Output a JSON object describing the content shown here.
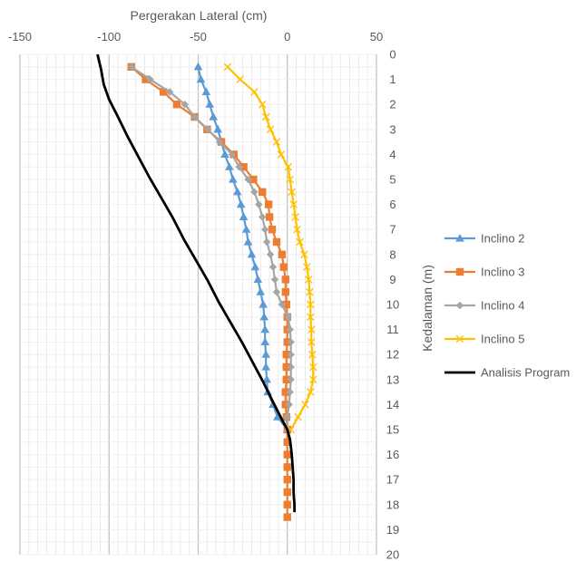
{
  "chart_data": {
    "type": "line",
    "title": "",
    "xlabel": "Pergerakan Lateral (cm)",
    "ylabel": "Kedalaman (m)",
    "xlim": [
      -150,
      50
    ],
    "ylim": [
      0,
      20
    ],
    "y_axis_reversed": true,
    "x_axis_position": "top",
    "y_axis_position": "right",
    "x_ticks": [
      -150,
      -100,
      -50,
      0,
      50
    ],
    "y_ticks": [
      0,
      1,
      2,
      3,
      4,
      5,
      6,
      7,
      8,
      9,
      10,
      11,
      12,
      13,
      14,
      15,
      16,
      17,
      18,
      19,
      20
    ],
    "grid": "vertical and horizontal",
    "legend_position": "right",
    "series": [
      {
        "name": "Inclino 2",
        "color": "#5B9BD5",
        "marker": "triangle",
        "points": [
          [
            -50,
            0.5
          ],
          [
            -48.5,
            1.0
          ],
          [
            -45.5,
            1.5
          ],
          [
            -43.5,
            2.0
          ],
          [
            -41.5,
            2.5
          ],
          [
            -39,
            3.0
          ],
          [
            -37,
            3.5
          ],
          [
            -35,
            4.0
          ],
          [
            -32.5,
            4.5
          ],
          [
            -30.5,
            5.0
          ],
          [
            -28,
            5.5
          ],
          [
            -26,
            6.0
          ],
          [
            -24.5,
            6.5
          ],
          [
            -23,
            7.0
          ],
          [
            -22,
            7.5
          ],
          [
            -20,
            8.0
          ],
          [
            -18,
            8.5
          ],
          [
            -16.5,
            9.0
          ],
          [
            -15,
            9.5
          ],
          [
            -13.5,
            10.0
          ],
          [
            -13,
            10.5
          ],
          [
            -12.5,
            11.0
          ],
          [
            -12.5,
            11.5
          ],
          [
            -12,
            12.0
          ],
          [
            -12,
            12.5
          ],
          [
            -11.5,
            13.0
          ],
          [
            -11,
            13.5
          ],
          [
            -8,
            14.0
          ],
          [
            -5.5,
            14.5
          ],
          [
            0,
            15.0
          ]
        ]
      },
      {
        "name": "Inclino 3",
        "color": "#ED7D31",
        "marker": "square",
        "points": [
          [
            -87.5,
            0.5
          ],
          [
            -79.5,
            1.0
          ],
          [
            -69.5,
            1.5
          ],
          [
            -62,
            2.0
          ],
          [
            -52,
            2.5
          ],
          [
            -45,
            3.0
          ],
          [
            -37,
            3.5
          ],
          [
            -30,
            4.0
          ],
          [
            -24.5,
            4.5
          ],
          [
            -19,
            5.0
          ],
          [
            -14,
            5.5
          ],
          [
            -10.5,
            6.0
          ],
          [
            -10,
            6.5
          ],
          [
            -8.5,
            7.0
          ],
          [
            -6,
            7.5
          ],
          [
            -3,
            8.0
          ],
          [
            -2,
            8.5
          ],
          [
            -1,
            9.0
          ],
          [
            -1,
            9.5
          ],
          [
            -0.5,
            10.0
          ],
          [
            0,
            10.5
          ],
          [
            0,
            11.0
          ],
          [
            0,
            11.5
          ],
          [
            -0.5,
            12.0
          ],
          [
            -0.5,
            12.5
          ],
          [
            -0.5,
            13.0
          ],
          [
            -1,
            13.5
          ],
          [
            -1,
            14.0
          ],
          [
            -0.5,
            14.5
          ],
          [
            0,
            15.0
          ],
          [
            0,
            15.5
          ],
          [
            0,
            16.0
          ],
          [
            0,
            16.5
          ],
          [
            0,
            17.0
          ],
          [
            0,
            17.5
          ],
          [
            0,
            18.0
          ],
          [
            0,
            18.5
          ]
        ]
      },
      {
        "name": "Inclino 4",
        "color": "#A5A5A5",
        "marker": "diamond",
        "points": [
          [
            -87.5,
            0.5
          ],
          [
            -77,
            1.0
          ],
          [
            -66,
            1.5
          ],
          [
            -57.5,
            2.0
          ],
          [
            -52,
            2.5
          ],
          [
            -44.5,
            3.0
          ],
          [
            -38,
            3.5
          ],
          [
            -31,
            4.0
          ],
          [
            -27,
            4.5
          ],
          [
            -22,
            5.0
          ],
          [
            -18.5,
            5.5
          ],
          [
            -16,
            6.0
          ],
          [
            -14,
            6.5
          ],
          [
            -12.5,
            7.0
          ],
          [
            -11.5,
            7.5
          ],
          [
            -9.5,
            8.0
          ],
          [
            -8,
            8.5
          ],
          [
            -7,
            9.0
          ],
          [
            -6,
            9.5
          ],
          [
            -3,
            10.0
          ],
          [
            0.5,
            10.5
          ],
          [
            1.5,
            11.0
          ],
          [
            2,
            11.5
          ],
          [
            2,
            12.0
          ],
          [
            2,
            12.5
          ],
          [
            2,
            13.0
          ],
          [
            1.5,
            13.5
          ],
          [
            1,
            14.0
          ],
          [
            0,
            14.5
          ],
          [
            0,
            15.0
          ]
        ]
      },
      {
        "name": "Inclino 5",
        "color": "#FFC000",
        "marker": "x",
        "points": [
          [
            -33.5,
            0.5
          ],
          [
            -26.5,
            1.0
          ],
          [
            -18.5,
            1.5
          ],
          [
            -14,
            2.0
          ],
          [
            -12,
            2.5
          ],
          [
            -9.5,
            3.0
          ],
          [
            -6,
            3.5
          ],
          [
            -3.5,
            4.0
          ],
          [
            0.5,
            4.5
          ],
          [
            1.5,
            5.0
          ],
          [
            2.5,
            5.5
          ],
          [
            3.5,
            6.0
          ],
          [
            4.5,
            6.5
          ],
          [
            5.5,
            7.0
          ],
          [
            7,
            7.5
          ],
          [
            9.5,
            8.0
          ],
          [
            11,
            8.5
          ],
          [
            12,
            9.0
          ],
          [
            12.5,
            9.5
          ],
          [
            13,
            10.0
          ],
          [
            13,
            10.5
          ],
          [
            13.5,
            11.0
          ],
          [
            13.5,
            11.5
          ],
          [
            14,
            12.0
          ],
          [
            14.5,
            12.5
          ],
          [
            14.5,
            13.0
          ],
          [
            13,
            13.5
          ],
          [
            10,
            14.0
          ],
          [
            6,
            14.5
          ],
          [
            2,
            15.0
          ]
        ]
      },
      {
        "name": "Analisis Program",
        "color": "#000000",
        "marker": "none",
        "points": [
          [
            -106.5,
            0.0
          ],
          [
            -104.5,
            0.6
          ],
          [
            -103,
            1.2
          ],
          [
            -100,
            1.8
          ],
          [
            -95,
            2.5
          ],
          [
            -89.5,
            3.3
          ],
          [
            -83.5,
            4.1
          ],
          [
            -77.5,
            4.9
          ],
          [
            -71,
            5.7
          ],
          [
            -64.5,
            6.5
          ],
          [
            -58,
            7.4
          ],
          [
            -51.5,
            8.2
          ],
          [
            -45,
            9.0
          ],
          [
            -38.5,
            9.9
          ],
          [
            -32,
            10.7
          ],
          [
            -25.5,
            11.5
          ],
          [
            -19.5,
            12.3
          ],
          [
            -13.5,
            13.1
          ],
          [
            -8,
            13.9
          ],
          [
            -3,
            14.6
          ],
          [
            0,
            15.0
          ],
          [
            1.5,
            15.4
          ],
          [
            2.5,
            16.0
          ],
          [
            3,
            16.5
          ],
          [
            3.5,
            17.0
          ],
          [
            3.5,
            17.5
          ],
          [
            4,
            18.0
          ],
          [
            4,
            18.3
          ]
        ]
      }
    ]
  }
}
